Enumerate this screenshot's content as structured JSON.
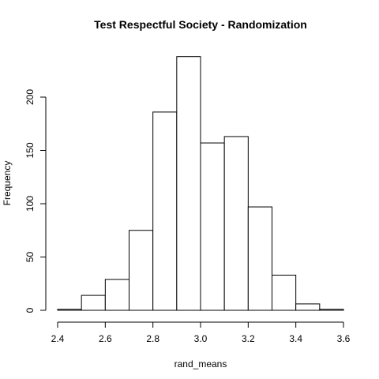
{
  "chart_data": {
    "type": "bar",
    "title": "Test Respectful Society - Randomization",
    "xlabel": "rand_means",
    "ylabel": "Frequency",
    "bins": [
      {
        "start": 2.4,
        "end": 2.5,
        "count": 1
      },
      {
        "start": 2.5,
        "end": 2.6,
        "count": 14
      },
      {
        "start": 2.6,
        "end": 2.7,
        "count": 29
      },
      {
        "start": 2.7,
        "end": 2.8,
        "count": 75
      },
      {
        "start": 2.8,
        "end": 2.9,
        "count": 186
      },
      {
        "start": 2.9,
        "end": 3.0,
        "count": 238
      },
      {
        "start": 3.0,
        "end": 3.1,
        "count": 157
      },
      {
        "start": 3.1,
        "end": 3.2,
        "count": 163
      },
      {
        "start": 3.2,
        "end": 3.3,
        "count": 97
      },
      {
        "start": 3.3,
        "end": 3.4,
        "count": 33
      },
      {
        "start": 3.4,
        "end": 3.5,
        "count": 6
      },
      {
        "start": 3.5,
        "end": 3.6,
        "count": 1
      }
    ],
    "xlim": [
      2.4,
      3.6
    ],
    "ylim": [
      0,
      240
    ],
    "x_ticks": [
      "2.4",
      "2.6",
      "2.8",
      "3.0",
      "3.2",
      "3.4",
      "3.6"
    ],
    "y_ticks": [
      "0",
      "50",
      "100",
      "150",
      "200"
    ],
    "grid": false
  }
}
